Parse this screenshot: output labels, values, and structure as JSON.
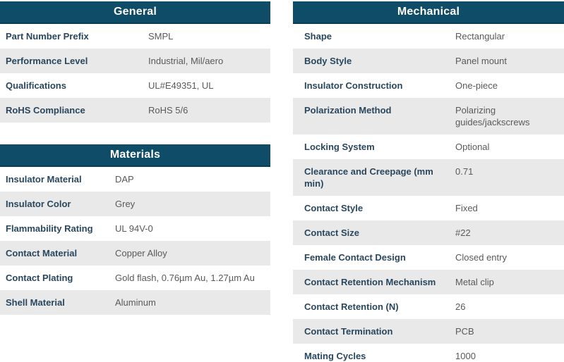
{
  "theme": {
    "header_bg": "#0f4c67",
    "header_border": "#0b3e55",
    "header_text": "#ffffff",
    "label_color": "#29475e",
    "value_color": "#5a5a5a",
    "stripe_bg": "#e9e9e9",
    "row_bg": "#ffffff"
  },
  "tables": {
    "general": {
      "title": "General",
      "rows": [
        {
          "label": "Part Number Prefix",
          "value": "SMPL"
        },
        {
          "label": "Performance Level",
          "value": "Industrial, Mil/aero"
        },
        {
          "label": "Qualifications",
          "value": "UL#E49351, UL"
        },
        {
          "label": "RoHS Compliance",
          "value": "RoHS 5/6"
        }
      ]
    },
    "materials": {
      "title": "Materials",
      "rows": [
        {
          "label": "Insulator Material",
          "value": "DAP"
        },
        {
          "label": "Insulator Color",
          "value": "Grey"
        },
        {
          "label": "Flammability Rating",
          "value": "UL 94V-0"
        },
        {
          "label": "Contact Material",
          "value": "Copper Alloy"
        },
        {
          "label": "Contact Plating",
          "value": "Gold flash, 0.76µm Au, 1.27µm Au"
        },
        {
          "label": "Shell Material",
          "value": "Aluminum"
        }
      ]
    },
    "mechanical": {
      "title": "Mechanical",
      "rows": [
        {
          "label": "Shape",
          "value": "Rectangular"
        },
        {
          "label": "Body Style",
          "value": "Panel mount"
        },
        {
          "label": "Insulator Construction",
          "value": "One-piece"
        },
        {
          "label": "Polarization Method",
          "value": "Polarizing guides/jackscrews"
        },
        {
          "label": "Locking System",
          "value": "Optional"
        },
        {
          "label": "Clearance and Creepage (mm min)",
          "value": "0.71"
        },
        {
          "label": "Contact Style",
          "value": "Fixed"
        },
        {
          "label": "Contact Size",
          "value": "#22"
        },
        {
          "label": "Female Contact Design",
          "value": "Closed entry"
        },
        {
          "label": "Contact Retention Mechanism",
          "value": "Metal clip"
        },
        {
          "label": "Contact Retention (N)",
          "value": "26"
        },
        {
          "label": "Contact Termination",
          "value": "PCB"
        },
        {
          "label": "Mating Cycles",
          "value": "1000"
        }
      ]
    }
  }
}
